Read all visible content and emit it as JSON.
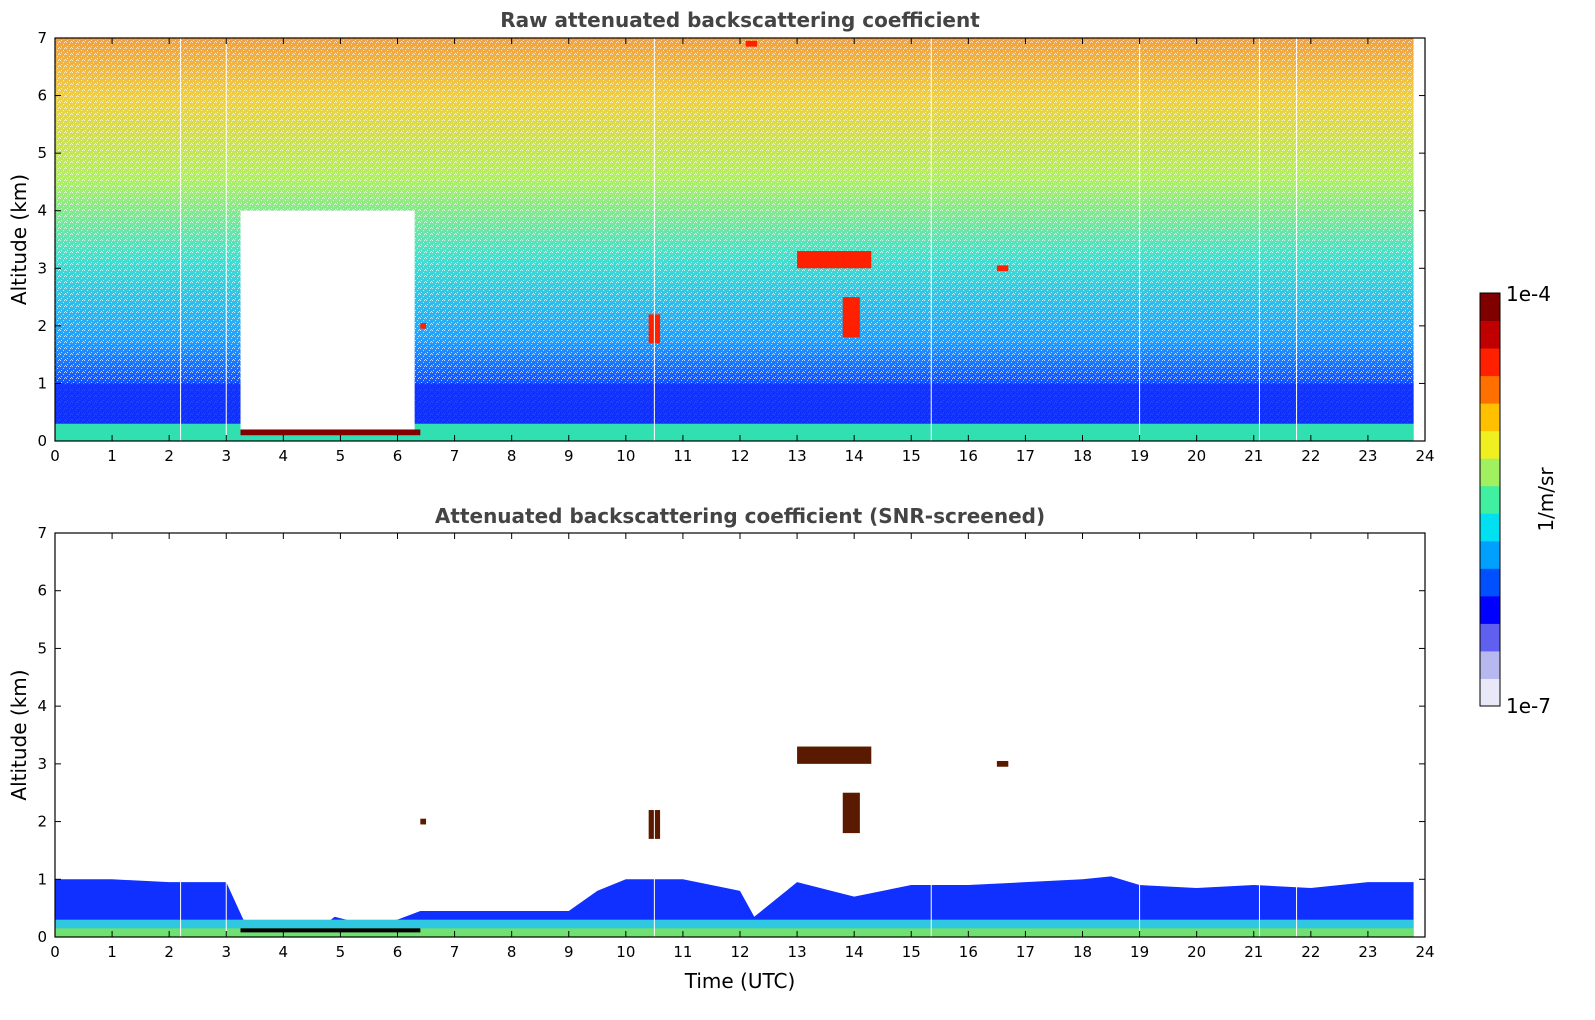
{
  "chart_data": [
    {
      "type": "heatmap",
      "title": "Raw attenuated backscattering coefficient",
      "xlabel": "",
      "ylabel": "Altitude (km)",
      "xlim": [
        0,
        24
      ],
      "ylim": [
        0,
        7
      ],
      "xticks": [
        "0",
        "1",
        "2",
        "3",
        "4",
        "5",
        "6",
        "7",
        "8",
        "9",
        "10",
        "11",
        "12",
        "13",
        "14",
        "15",
        "16",
        "17",
        "18",
        "19",
        "20",
        "21",
        "22",
        "23",
        "24"
      ],
      "yticks": [
        "0",
        "1",
        "2",
        "3",
        "4",
        "5",
        "6",
        "7"
      ],
      "data_extent_x": [
        0,
        23.8
      ],
      "layers": [
        {
          "name": "surface band",
          "altitude_km": [
            0,
            0.3
          ],
          "level": "high"
        },
        {
          "name": "boundary layer",
          "altitude_km": [
            0.3,
            1.0
          ],
          "level": "low"
        },
        {
          "name": "noise above",
          "altitude_km": [
            1.0,
            7.0
          ],
          "level": "increasing with altitude"
        }
      ],
      "features": [
        {
          "time_utc": [
            3.25,
            6.3
          ],
          "altitude_km": [
            0.2,
            4.0
          ],
          "description": "data gap"
        },
        {
          "time_utc": [
            3.25,
            6.4
          ],
          "altitude_km": [
            0.1,
            0.2
          ],
          "level": "saturated"
        },
        {
          "time_utc": [
            13.0,
            14.3
          ],
          "altitude_km": [
            3.0,
            3.3
          ],
          "level": "high"
        },
        {
          "time_utc": [
            13.8,
            14.1
          ],
          "altitude_km": [
            1.8,
            2.5
          ],
          "level": "high"
        },
        {
          "time_utc": [
            10.4,
            10.6
          ],
          "altitude_km": [
            1.7,
            2.2
          ],
          "level": "high"
        },
        {
          "time_utc": [
            16.5,
            16.7
          ],
          "altitude_km": [
            2.95,
            3.05
          ],
          "level": "high"
        },
        {
          "time_utc": [
            6.4,
            6.5
          ],
          "altitude_km": [
            1.95,
            2.05
          ],
          "level": "high"
        },
        {
          "time_utc": [
            12.1,
            12.3
          ],
          "altitude_km": [
            6.85,
            6.95
          ],
          "level": "high"
        }
      ],
      "gap_lines_utc": [
        2.2,
        3.0,
        10.5,
        15.35,
        19.0,
        21.1,
        21.75
      ]
    },
    {
      "type": "heatmap",
      "title": "Attenuated backscattering coefficient (SNR-screened)",
      "xlabel": "Time (UTC)",
      "ylabel": "Altitude (km)",
      "xlim": [
        0,
        24
      ],
      "ylim": [
        0,
        7
      ],
      "xticks": [
        "0",
        "1",
        "2",
        "3",
        "4",
        "5",
        "6",
        "7",
        "8",
        "9",
        "10",
        "11",
        "12",
        "13",
        "14",
        "15",
        "16",
        "17",
        "18",
        "19",
        "20",
        "21",
        "22",
        "23",
        "24"
      ],
      "yticks": [
        "0",
        "1",
        "2",
        "3",
        "4",
        "5",
        "6",
        "7"
      ],
      "data_extent_x": [
        0,
        23.8
      ],
      "boundary_layer_top_km": {
        "time_utc": [
          0,
          1,
          2,
          3,
          3.3,
          4,
          4.7,
          4.9,
          5.5,
          6.0,
          6.4,
          7,
          8,
          9,
          9.5,
          10,
          11,
          12,
          12.25,
          13,
          14,
          15,
          16,
          17,
          18,
          18.5,
          19,
          20,
          21,
          22,
          23,
          23.8
        ],
        "top_km": [
          1.0,
          1.0,
          0.95,
          0.95,
          0.3,
          0.2,
          0.2,
          0.35,
          0.2,
          0.3,
          0.45,
          0.45,
          0.45,
          0.45,
          0.8,
          1.0,
          1.0,
          0.8,
          0.35,
          0.95,
          0.7,
          0.9,
          0.9,
          0.95,
          1.0,
          1.05,
          0.9,
          0.85,
          0.9,
          0.85,
          0.95,
          0.95
        ]
      },
      "features": [
        {
          "time_utc": [
            13.0,
            14.3
          ],
          "altitude_km": [
            3.0,
            3.3
          ],
          "level": "high"
        },
        {
          "time_utc": [
            13.8,
            14.1
          ],
          "altitude_km": [
            1.8,
            2.5
          ],
          "level": "high"
        },
        {
          "time_utc": [
            10.4,
            10.6
          ],
          "altitude_km": [
            1.7,
            2.2
          ],
          "level": "high"
        },
        {
          "time_utc": [
            16.5,
            16.7
          ],
          "altitude_km": [
            2.95,
            3.05
          ],
          "level": "high"
        },
        {
          "time_utc": [
            6.4,
            6.5
          ],
          "altitude_km": [
            1.95,
            2.05
          ],
          "level": "high"
        },
        {
          "time_utc": [
            3.25,
            6.4
          ],
          "altitude_km": [
            0.08,
            0.15
          ],
          "level": "saturated"
        }
      ],
      "gap_lines_utc": [
        2.2,
        3.0,
        10.5,
        15.35,
        19.0,
        21.1,
        21.75
      ]
    }
  ],
  "colorbar": {
    "label": "1/m/sr",
    "max_label": "1e-4",
    "min_label": "1e-7",
    "colormap": [
      "#e8e8f8",
      "#b8b8f0",
      "#6060f0",
      "#0000ff",
      "#0050ff",
      "#00a0ff",
      "#00e0f0",
      "#40f0a0",
      "#a0f060",
      "#f0f020",
      "#ffc000",
      "#ff7000",
      "#ff2000",
      "#c00000",
      "#800000"
    ]
  }
}
